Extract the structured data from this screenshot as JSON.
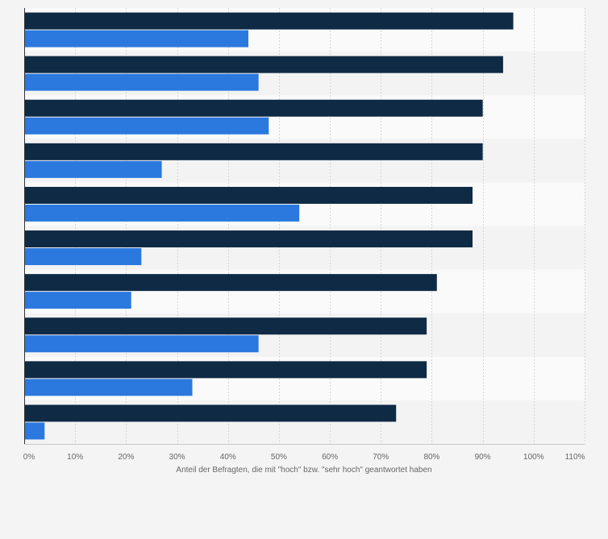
{
  "colors": {
    "background": "#f4f4f4",
    "band_light": "#fafafa",
    "band_dark": "#f3f3f3",
    "grid": "#d6d6d6",
    "axis": "#333333",
    "series_dark": "#0f2a44",
    "series_blue": "#2b78de"
  },
  "chart_data": {
    "type": "bar",
    "orientation": "horizontal",
    "title": "",
    "xlabel": "Anteil der Befragten, die mit \"hoch\" bzw. \"sehr hoch\" geantwortet haben",
    "ylabel": "",
    "xlim": [
      0,
      110
    ],
    "grid": true,
    "legend": "none",
    "x_ticks": [
      "0%",
      "10%",
      "20%",
      "30%",
      "40%",
      "50%",
      "60%",
      "70%",
      "80%",
      "90%",
      "100%",
      "110%"
    ],
    "categories": [
      "",
      "",
      "",
      "",
      "",
      "",
      "",
      "",
      "",
      ""
    ],
    "series": [
      {
        "color": "#0f2a44",
        "values": [
          96,
          94,
          90,
          90,
          88,
          88,
          81,
          79,
          79,
          73
        ]
      },
      {
        "color": "#2b78de",
        "values": [
          44,
          46,
          48,
          27,
          54,
          23,
          21,
          46,
          33,
          4
        ]
      }
    ]
  }
}
